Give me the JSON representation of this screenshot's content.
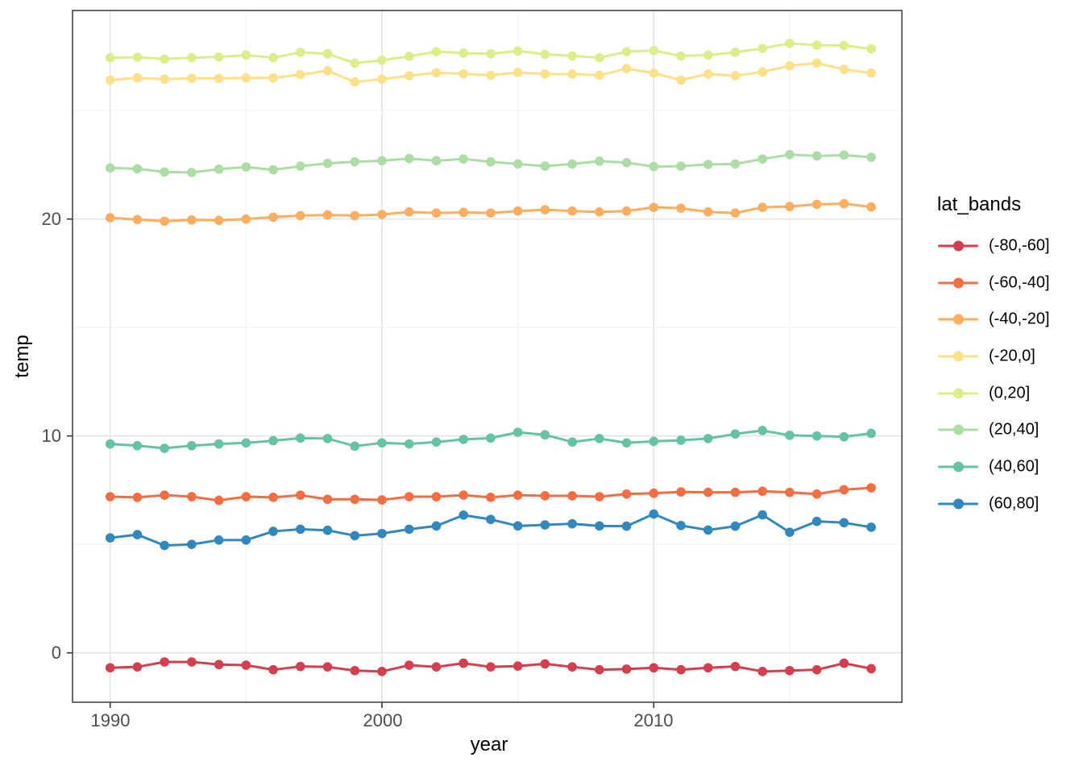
{
  "chart_data": {
    "type": "line",
    "title": "",
    "xlabel": "year",
    "ylabel": "temp",
    "legend_title": "lat_bands",
    "legend_position": "right",
    "grid": true,
    "x": [
      1990,
      1991,
      1992,
      1993,
      1994,
      1995,
      1996,
      1997,
      1998,
      1999,
      2000,
      2001,
      2002,
      2003,
      2004,
      2005,
      2006,
      2007,
      2008,
      2009,
      2010,
      2011,
      2012,
      2013,
      2014,
      2015,
      2016,
      2017,
      2018
    ],
    "xticks": [
      1990,
      2000,
      2010
    ],
    "xtick_labels": [
      "1990",
      "2000",
      "2010"
    ],
    "x_minor_ticks": [
      1995,
      2005,
      2015
    ],
    "yticks": [
      0,
      10,
      20
    ],
    "ytick_labels": [
      "0",
      "10",
      "20"
    ],
    "y_minor_ticks": [
      5,
      15,
      25
    ],
    "xlim": [
      1988.6,
      2019.4
    ],
    "ylim": [
      -2.3,
      29.6
    ],
    "panel_border_color": "#383838",
    "grid_major_color": "#e4e4e4",
    "grid_minor_color": "#f0f0f0",
    "tick_text_color": "#4d4d4d",
    "series": [
      {
        "name": "(-80,-60]",
        "color": "#d53e4f",
        "values": [
          -0.69,
          -0.65,
          -0.42,
          -0.42,
          -0.54,
          -0.57,
          -0.78,
          -0.63,
          -0.65,
          -0.82,
          -0.86,
          -0.57,
          -0.65,
          -0.48,
          -0.65,
          -0.61,
          -0.51,
          -0.65,
          -0.78,
          -0.75,
          -0.69,
          -0.78,
          -0.69,
          -0.63,
          -0.86,
          -0.82,
          -0.78,
          -0.48,
          -0.73
        ]
      },
      {
        "name": "(-60,-40]",
        "color": "#f46d43",
        "values": [
          7.2,
          7.17,
          7.27,
          7.2,
          7.03,
          7.2,
          7.17,
          7.27,
          7.08,
          7.08,
          7.05,
          7.2,
          7.2,
          7.27,
          7.17,
          7.27,
          7.24,
          7.24,
          7.2,
          7.32,
          7.36,
          7.42,
          7.4,
          7.4,
          7.45,
          7.4,
          7.32,
          7.52,
          7.61
        ]
      },
      {
        "name": "(-40,-20]",
        "color": "#fdae61",
        "values": [
          20.06,
          19.98,
          19.9,
          19.96,
          19.94,
          20.0,
          20.09,
          20.16,
          20.19,
          20.16,
          20.21,
          20.33,
          20.28,
          20.31,
          20.28,
          20.37,
          20.43,
          20.37,
          20.33,
          20.37,
          20.54,
          20.5,
          20.33,
          20.28,
          20.54,
          20.58,
          20.68,
          20.71,
          20.56
        ]
      },
      {
        "name": "(-20,0]",
        "color": "#fee08b",
        "values": [
          26.41,
          26.51,
          26.45,
          26.49,
          26.49,
          26.51,
          26.51,
          26.66,
          26.84,
          26.32,
          26.45,
          26.61,
          26.75,
          26.7,
          26.63,
          26.76,
          26.69,
          26.69,
          26.63,
          26.94,
          26.73,
          26.41,
          26.69,
          26.61,
          26.78,
          27.07,
          27.19,
          26.9,
          26.73
        ]
      },
      {
        "name": "(0,20]",
        "color": "#d9ef8b",
        "values": [
          27.44,
          27.46,
          27.38,
          27.44,
          27.47,
          27.56,
          27.44,
          27.69,
          27.62,
          27.19,
          27.32,
          27.5,
          27.72,
          27.65,
          27.62,
          27.75,
          27.6,
          27.52,
          27.44,
          27.72,
          27.77,
          27.52,
          27.56,
          27.69,
          27.87,
          28.1,
          28.02,
          28.0,
          27.85
        ]
      },
      {
        "name": "(20,40]",
        "color": "#abdda4",
        "values": [
          22.36,
          22.32,
          22.17,
          22.15,
          22.3,
          22.4,
          22.27,
          22.44,
          22.57,
          22.64,
          22.69,
          22.79,
          22.69,
          22.77,
          22.64,
          22.54,
          22.44,
          22.54,
          22.67,
          22.6,
          22.42,
          22.44,
          22.52,
          22.54,
          22.77,
          22.97,
          22.91,
          22.95,
          22.85
        ]
      },
      {
        "name": "(40,60]",
        "color": "#66c2a5",
        "values": [
          9.63,
          9.55,
          9.43,
          9.55,
          9.63,
          9.68,
          9.78,
          9.9,
          9.88,
          9.53,
          9.68,
          9.63,
          9.72,
          9.84,
          9.9,
          10.17,
          10.05,
          9.72,
          9.88,
          9.68,
          9.75,
          9.8,
          9.88,
          10.09,
          10.25,
          10.03,
          10.0,
          9.96,
          10.12
        ]
      },
      {
        "name": "(60,80]",
        "color": "#3288bd",
        "values": [
          5.3,
          5.45,
          4.95,
          5.0,
          5.2,
          5.2,
          5.6,
          5.7,
          5.65,
          5.4,
          5.5,
          5.7,
          5.85,
          6.35,
          6.15,
          5.85,
          5.9,
          5.95,
          5.85,
          5.84,
          6.4,
          5.87,
          5.66,
          5.84,
          6.36,
          5.56,
          6.06,
          6.0,
          5.79
        ]
      }
    ]
  }
}
